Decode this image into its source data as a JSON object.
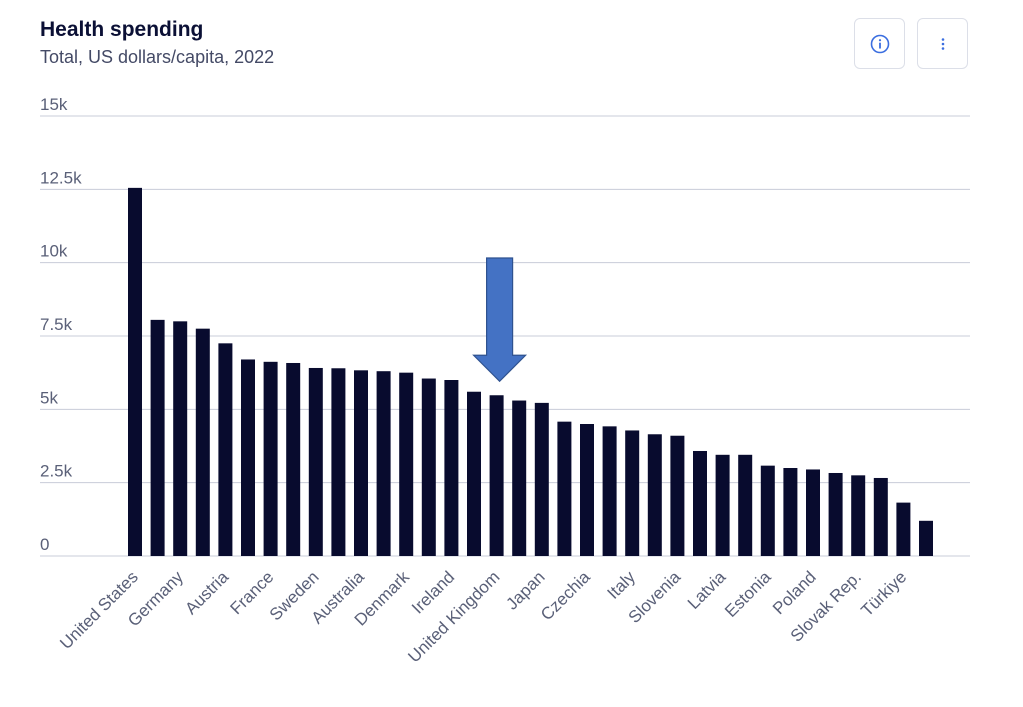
{
  "header": {
    "title": "Health spending",
    "subtitle": "Total, US dollars/capita, 2022"
  },
  "toolbar": {
    "info_icon": "info-icon",
    "more_icon": "vertical-ellipsis-icon",
    "accent_color": "#3b6ee0"
  },
  "annotation": {
    "type": "down-arrow",
    "points_to": "United Kingdom",
    "color": "#4472c4"
  },
  "chart_data": {
    "type": "bar",
    "title": "Health spending",
    "subtitle": "Total, US dollars/capita, 2022",
    "ylim": [
      0,
      15000
    ],
    "yticks": [
      0,
      2500,
      5000,
      7500,
      10000,
      12500,
      15000
    ],
    "ytick_labels": [
      "0",
      "2.5k",
      "5k",
      "7.5k",
      "10k",
      "12.5k",
      "15k"
    ],
    "grid": "horizontal",
    "bar_color": "#080b2e",
    "categories": [
      "United States",
      "",
      "Germany",
      "",
      "Austria",
      "",
      "France",
      "",
      "Sweden",
      "",
      "Australia",
      "",
      "Denmark",
      "",
      "Ireland",
      "",
      "United Kingdom",
      "",
      "Japan",
      "",
      "Czechia",
      "",
      "Italy",
      "",
      "Slovenia",
      "",
      "Latvia",
      "",
      "Estonia",
      "",
      "Poland",
      "",
      "Slovak Rep.",
      "",
      "Türkiye",
      ""
    ],
    "values": [
      12550,
      8050,
      8000,
      7750,
      7250,
      6700,
      6620,
      6580,
      6410,
      6400,
      6330,
      6300,
      6250,
      6050,
      6000,
      5600,
      5480,
      5300,
      5220,
      4580,
      4500,
      4420,
      4280,
      4150,
      4100,
      3580,
      3450,
      3450,
      3080,
      3000,
      2950,
      2830,
      2750,
      2660,
      1820,
      1200
    ]
  }
}
